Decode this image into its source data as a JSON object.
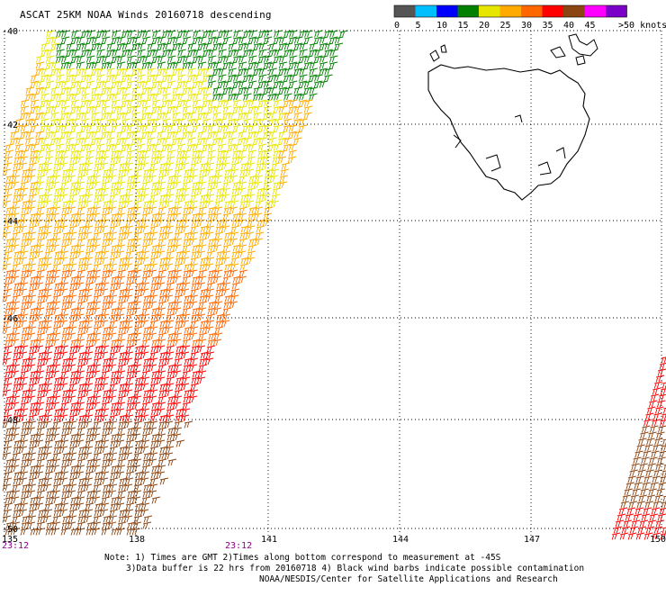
{
  "title": "ASCAT 25KM NOAA Winds 20160718 descending",
  "legend": {
    "labels": [
      "0",
      "5",
      "10",
      "15",
      "20",
      "25",
      "30",
      "35",
      "40",
      "45",
      ">50 knots"
    ],
    "colors": [
      "#555555",
      "#00bfff",
      "#0000ff",
      "#008000",
      "#e6e600",
      "#ffaa00",
      "#ff6600",
      "#ff0000",
      "#8b4513",
      "#ff00ff",
      "#7b00c8"
    ]
  },
  "map": {
    "lat_labels": [
      "-40",
      "-42",
      "-44",
      "-46",
      "-48",
      "-50"
    ],
    "lon_labels": [
      "135",
      "138",
      "141",
      "144",
      "147",
      "150"
    ],
    "times": [
      "23:12",
      "23:12"
    ],
    "landmass": "Tasmania"
  },
  "notes": {
    "line1": "Note: 1) Times are GMT 2)Times along bottom correspond to measurement at -45S",
    "line2": "3)Data buffer is 22 hrs from 20160718 4) Black wind barbs indicate possible contamination",
    "line3": "NOAA/NESDIS/Center for Satellite Applications and Research"
  }
}
